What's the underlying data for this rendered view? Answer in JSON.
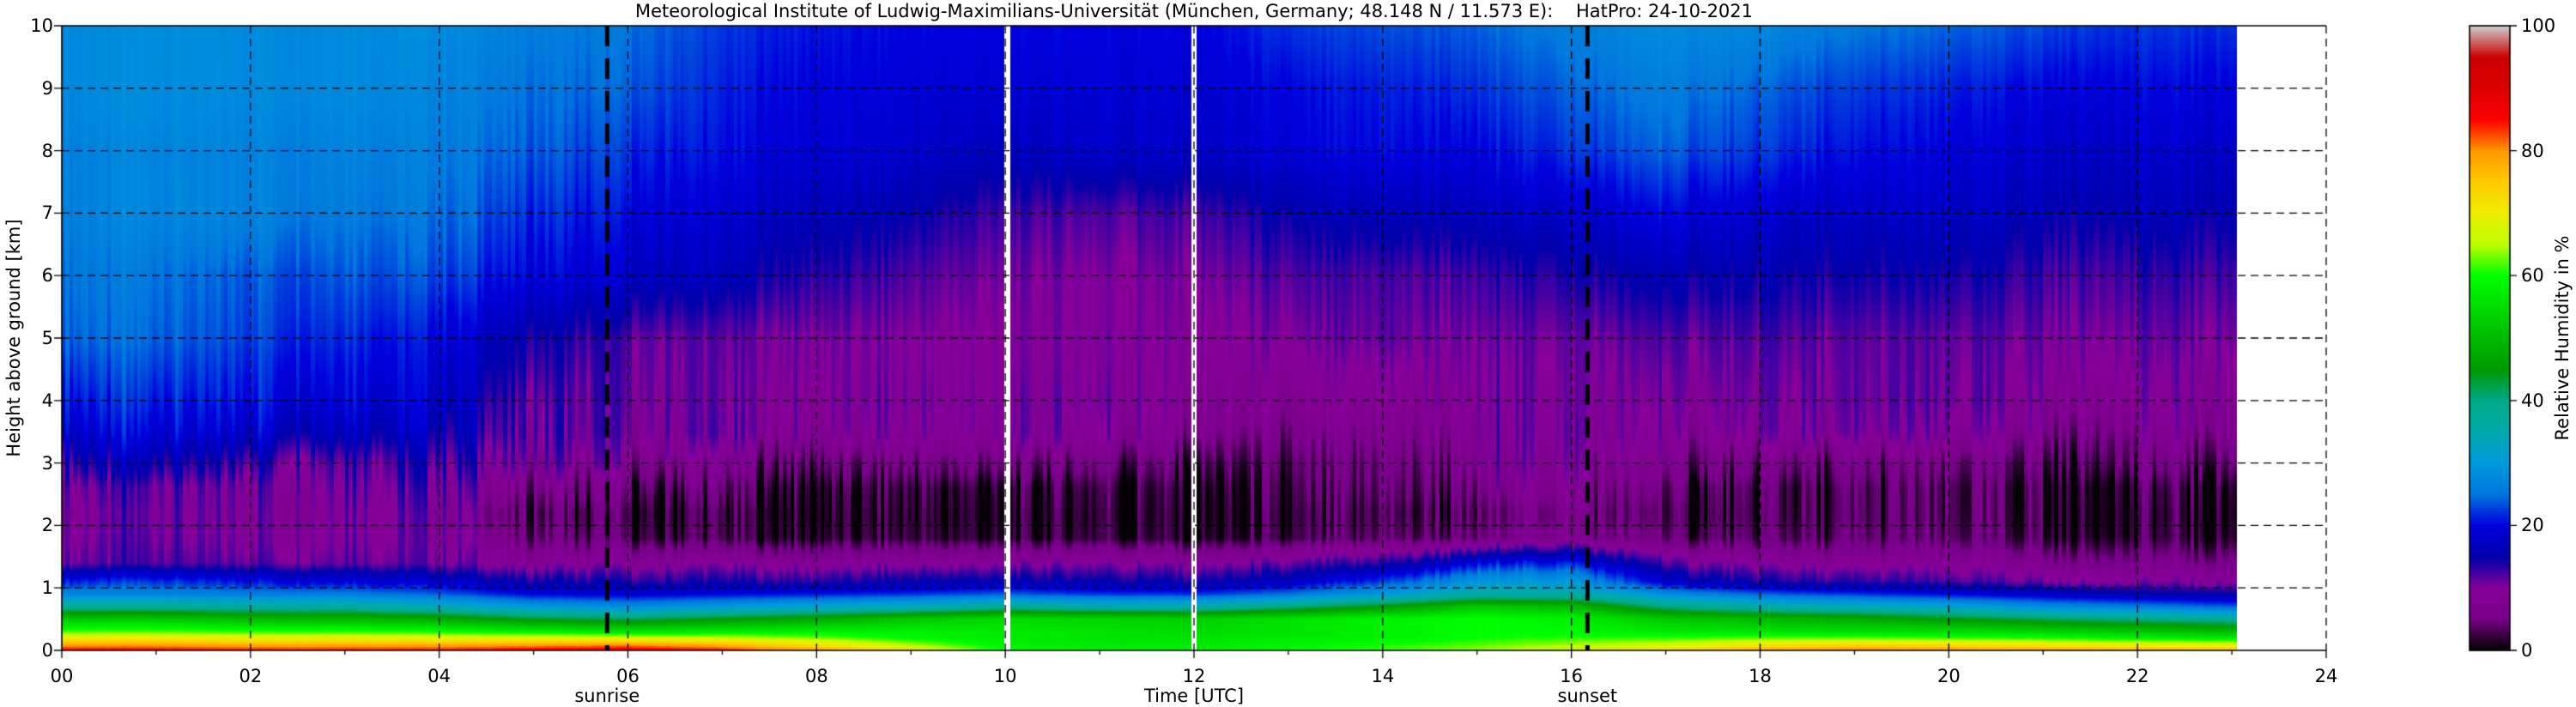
{
  "title": "Meteorological Institute of Ludwig-Maximilians-Universität (München, Germany; 48.148 N / 11.573 E):    HatPro: 24-10-2021",
  "axes": {
    "x": {
      "label": "Time [UTC]",
      "tick_values": [
        0,
        2,
        4,
        6,
        8,
        10,
        12,
        14,
        16,
        18,
        20,
        22,
        24
      ],
      "tick_labels": [
        "00",
        "02",
        "04",
        "06",
        "08",
        "10",
        "12",
        "14",
        "16",
        "18",
        "20",
        "22",
        "24"
      ],
      "minor_tick_step_hours": 1,
      "range_hours": [
        0,
        24
      ]
    },
    "y": {
      "label": "Height above ground [km]",
      "tick_values": [
        0,
        1,
        2,
        3,
        4,
        5,
        6,
        7,
        8,
        9,
        10
      ],
      "tick_labels": [
        "0",
        "1",
        "2",
        "3",
        "4",
        "5",
        "6",
        "7",
        "8",
        "9",
        "10"
      ],
      "range_km": [
        0,
        10
      ]
    },
    "colorbar": {
      "label": "Relative Humidity in %",
      "tick_values": [
        0,
        20,
        40,
        60,
        80,
        100
      ],
      "tick_labels": [
        "0",
        "20",
        "40",
        "60",
        "80",
        "100"
      ],
      "range_percent": [
        0,
        100
      ]
    }
  },
  "annotations": {
    "sunrise": {
      "label": "sunrise",
      "time_utc_hours": 5.78
    },
    "sunset": {
      "label": "sunset",
      "time_utc_hours": 16.17
    }
  },
  "grid": {
    "style": "dashed",
    "color": "#000000"
  },
  "chart_data": {
    "type": "heatmap",
    "title": "Meteorological Institute of Ludwig-Maximilians-Universität (München, Germany; 48.148 N / 11.573 E):    HatPro: 24-10-2021",
    "xlabel": "Time [UTC]",
    "ylabel": "Height above ground [km]",
    "zlabel": "Relative Humidity in %",
    "xlim_hours": [
      0,
      24
    ],
    "ylim_km": [
      0,
      10
    ],
    "zlim_percent": [
      0,
      100
    ],
    "data_end_hour": 23.05,
    "data_gaps_hours": [
      [
        9.99,
        10.05
      ],
      [
        11.97,
        12.03
      ]
    ],
    "no_data_color": "#ffffff",
    "x_hours": [
      0,
      1,
      2,
      3,
      4,
      5,
      6,
      7,
      8,
      9,
      10,
      11,
      12,
      13,
      14,
      15,
      16,
      17,
      18,
      19,
      20,
      21,
      22,
      23
    ],
    "heights_km": [
      0,
      0.1,
      0.2,
      0.3,
      0.5,
      0.7,
      0.9,
      1.1,
      1.4,
      1.8,
      2.2,
      2.6,
      3.0,
      3.5,
      4.0,
      5.0,
      6.0,
      7.0,
      8.0,
      9.0,
      10.0
    ],
    "rh_percent_rows_bottom_to_top": [
      [
        86,
        86,
        85,
        85,
        85,
        87,
        88,
        85,
        79,
        70,
        60,
        58,
        58,
        60,
        62,
        64,
        68,
        72,
        78,
        81,
        80,
        78,
        77,
        76
      ],
      [
        78,
        78,
        77,
        77,
        77,
        78,
        79,
        76,
        71,
        64,
        58,
        57,
        57,
        58,
        60,
        62,
        64,
        66,
        70,
        72,
        71,
        70,
        68,
        67
      ],
      [
        70,
        70,
        69,
        69,
        68,
        68,
        67,
        66,
        63,
        59,
        57,
        56,
        56,
        57,
        58,
        60,
        61,
        61,
        62,
        62,
        61,
        60,
        58,
        57
      ],
      [
        62,
        62,
        61,
        61,
        60,
        58,
        56,
        57,
        58,
        58,
        57,
        56,
        55,
        56,
        58,
        60,
        59,
        57,
        56,
        55,
        55,
        54,
        52,
        50
      ],
      [
        52,
        52,
        50,
        50,
        48,
        44,
        42,
        45,
        48,
        52,
        55,
        54,
        53,
        56,
        58,
        60,
        58,
        52,
        50,
        48,
        45,
        42,
        40,
        38
      ],
      [
        38,
        38,
        37,
        37,
        34,
        30,
        28,
        30,
        32,
        34,
        38,
        36,
        36,
        40,
        45,
        52,
        50,
        40,
        36,
        34,
        32,
        28,
        26,
        24
      ],
      [
        27,
        27,
        26,
        26,
        24,
        20,
        19,
        20,
        21,
        22,
        24,
        22,
        22,
        25,
        30,
        36,
        36,
        28,
        24,
        22,
        20,
        18,
        16,
        15
      ],
      [
        22,
        22,
        21,
        20,
        18,
        15,
        14,
        14,
        14,
        15,
        16,
        15,
        15,
        17,
        22,
        30,
        30,
        18,
        14,
        13,
        12,
        11,
        10,
        10
      ],
      [
        12,
        12,
        12,
        12,
        11,
        9,
        9,
        9,
        9,
        9,
        10,
        10,
        10,
        11,
        13,
        20,
        21,
        12,
        9,
        8,
        8,
        7,
        6,
        6
      ],
      [
        11,
        11,
        10.5,
        11,
        10,
        5,
        3,
        2,
        2,
        2,
        2,
        2,
        2,
        2,
        3,
        5,
        7,
        4,
        3,
        3,
        3,
        2.5,
        2,
        2
      ],
      [
        10.5,
        10.5,
        10.5,
        11,
        10,
        4,
        2,
        1.5,
        1.5,
        1.5,
        1.5,
        1.5,
        1.5,
        1.5,
        2,
        4,
        6,
        3,
        2,
        2,
        2,
        2,
        1.5,
        1.5
      ],
      [
        12,
        11,
        11,
        12,
        11,
        7,
        4,
        3,
        2,
        2,
        2,
        2,
        2,
        2,
        3,
        6,
        8,
        4,
        2,
        2,
        2,
        2,
        2,
        2
      ],
      [
        16,
        15,
        14,
        13,
        13,
        10,
        8,
        6,
        5,
        5,
        6,
        5,
        4,
        3,
        4,
        8,
        9,
        7,
        5,
        4,
        4,
        4,
        5,
        5
      ],
      [
        20,
        19,
        19,
        18,
        16,
        12,
        10,
        10,
        9,
        9,
        10,
        9,
        8,
        5,
        6,
        9,
        10,
        9,
        9,
        9,
        8,
        7,
        7,
        8
      ],
      [
        22,
        21,
        21,
        20,
        18,
        12,
        11,
        10,
        10,
        10,
        10,
        10,
        9,
        7,
        8,
        10,
        10,
        10,
        10,
        10,
        10,
        9,
        9,
        9
      ],
      [
        25,
        24,
        23,
        22,
        20,
        15,
        12,
        11,
        11,
        10,
        10,
        10,
        10,
        10,
        11,
        11,
        11,
        12,
        12,
        11,
        11,
        11,
        11,
        11
      ],
      [
        26,
        25,
        24,
        24,
        23,
        20,
        18,
        16,
        14,
        12,
        11,
        10,
        11,
        12,
        12,
        13,
        14,
        16,
        15,
        14,
        14,
        13,
        13,
        13
      ],
      [
        27,
        27,
        27,
        26,
        25,
        22,
        20,
        18,
        17,
        15,
        13,
        12,
        13,
        15,
        16,
        17,
        18,
        20,
        18,
        17,
        17,
        16,
        16,
        16
      ],
      [
        27,
        27,
        27,
        27,
        26,
        24,
        22,
        20,
        19,
        18,
        17,
        18,
        18,
        19,
        20,
        20,
        22,
        24,
        22,
        20,
        19,
        18,
        18,
        18
      ],
      [
        28,
        28,
        28,
        28,
        27,
        25,
        24,
        21,
        20,
        19,
        19,
        19,
        19,
        20,
        21,
        22,
        24,
        26,
        24,
        22,
        21,
        20,
        20,
        20
      ],
      [
        28,
        28,
        28,
        28,
        28,
        26,
        25,
        22,
        21,
        20,
        20,
        20,
        20,
        22,
        23,
        24,
        26,
        28,
        27,
        25,
        24,
        23,
        22,
        22
      ]
    ],
    "colormap_name": "nipy_spectral",
    "colormap_stops": [
      [
        0,
        "#000000"
      ],
      [
        5,
        "#770088"
      ],
      [
        10,
        "#880099"
      ],
      [
        15,
        "#0000aa"
      ],
      [
        20,
        "#0000dd"
      ],
      [
        25,
        "#0077dd"
      ],
      [
        30,
        "#0099dd"
      ],
      [
        35,
        "#00aaaa"
      ],
      [
        40,
        "#00aa88"
      ],
      [
        45,
        "#009900"
      ],
      [
        50,
        "#00bb00"
      ],
      [
        55,
        "#00dd00"
      ],
      [
        60,
        "#00ff00"
      ],
      [
        65,
        "#bbff00"
      ],
      [
        70,
        "#eeee00"
      ],
      [
        75,
        "#ffcc00"
      ],
      [
        80,
        "#ff9900"
      ],
      [
        85,
        "#ff0000"
      ],
      [
        90,
        "#dd0000"
      ],
      [
        95,
        "#cc0000"
      ],
      [
        100,
        "#cccccc"
      ]
    ]
  }
}
